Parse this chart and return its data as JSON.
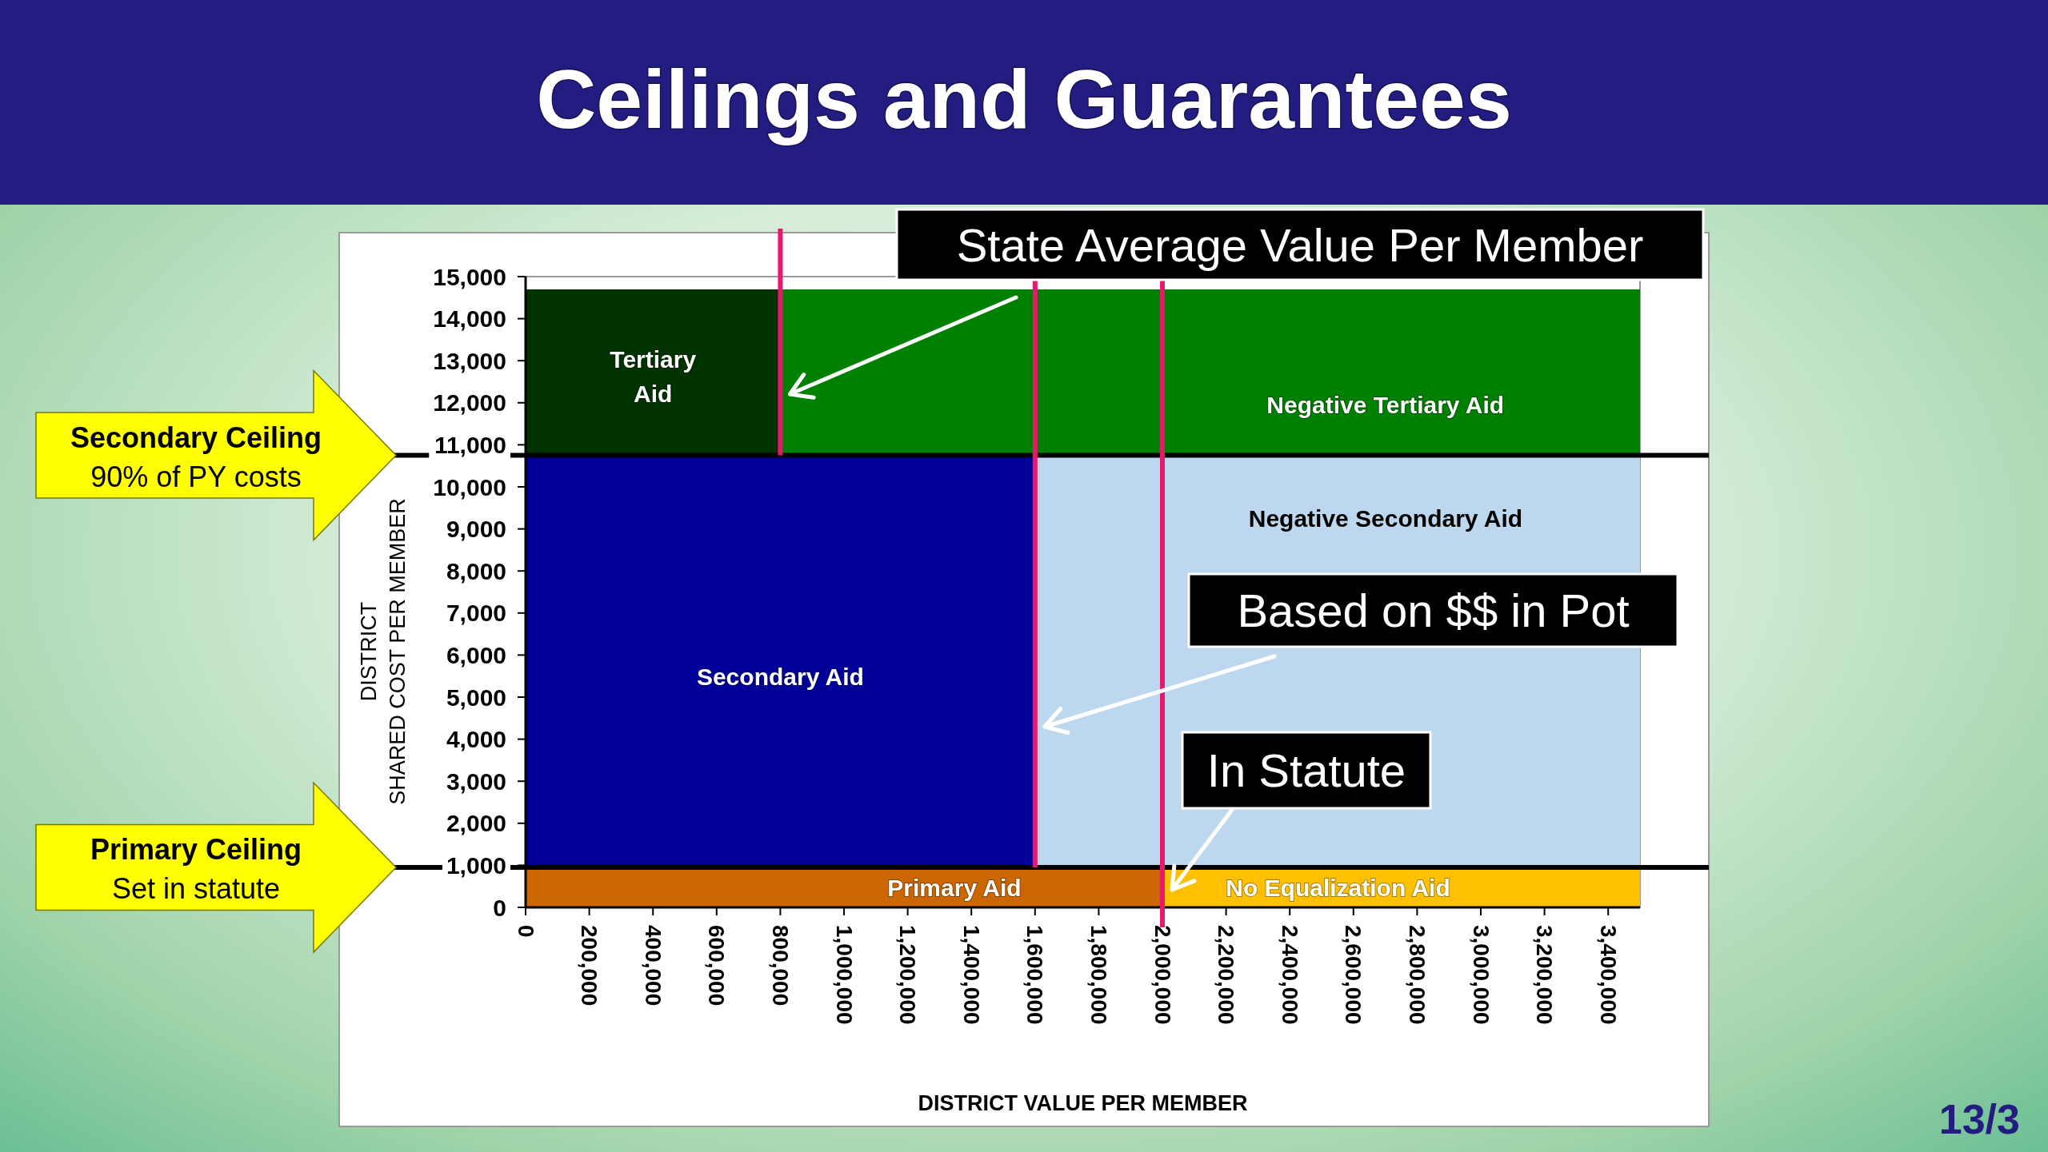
{
  "chart_data": {
    "type": "area",
    "title": "Ceilings and Guarantees",
    "xlabel": "DISTRICT VALUE PER MEMBER",
    "ylabel": "DISTRICT\nSHARED COST PER MEMBER",
    "series": [
      {
        "name": "Tertiary\nAid",
        "color": "#003300",
        "x": [
          0,
          800000
        ],
        "values": [
          14700,
          14700
        ]
      },
      {
        "name": "Negative Tertiary Aid",
        "color": "#008000",
        "x": [
          800000,
          3500000
        ],
        "values": [
          14700,
          14700
        ]
      },
      {
        "name": "Secondary Aid",
        "color": "#000099",
        "x": [
          0,
          1600000
        ],
        "values": [
          10750,
          10750
        ]
      },
      {
        "name": "Negative Secondary Aid",
        "color": "#bdd7ee",
        "x": [
          1600000,
          3500000
        ],
        "values": [
          10750,
          10750
        ]
      },
      {
        "name": "Primary Aid",
        "color": "#cc6600",
        "x": [
          0,
          2000000
        ],
        "values": [
          950,
          950
        ]
      },
      {
        "name": "No Equalization Aid",
        "color": "#ffc000",
        "x": [
          2000000,
          3500000
        ],
        "values": [
          950,
          950
        ]
      }
    ],
    "xlim": [
      0,
      3500000
    ],
    "xticks": [
      0,
      {
        "value": 200000,
        "label": "200,000"
      },
      {
        "value": 400000,
        "label": "400,000"
      },
      {
        "value": 600000,
        "label": "600,000"
      },
      {
        "value": 800000,
        "label": "800,000"
      },
      {
        "value": 1000000,
        "label": "1,000,000"
      },
      {
        "value": 1200000,
        "label": "1,200,000"
      },
      {
        "value": 1400000,
        "label": "1,400,000"
      },
      {
        "value": 1600000,
        "label": "1,600,000"
      },
      {
        "value": 1800000,
        "label": "1,800,000"
      },
      {
        "value": 2000000,
        "label": "2,000,000"
      },
      {
        "value": 2200000,
        "label": "2,200,000"
      },
      {
        "value": 2400000,
        "label": "2,400,000"
      },
      {
        "value": 2600000,
        "label": "2,600,000"
      },
      {
        "value": 2800000,
        "label": "2,800,000"
      },
      {
        "value": 3000000,
        "label": "3,000,000"
      },
      {
        "value": 3200000,
        "label": "3,200,000"
      },
      {
        "value": 3400000,
        "label": "3,400,000"
      }
    ],
    "ylim": [
      0,
      15000
    ],
    "yticks": [
      0,
      {
        "value": 1000,
        "label": "1,000"
      },
      {
        "value": 2000,
        "label": "2,000"
      },
      {
        "value": 3000,
        "label": "3,000"
      },
      {
        "value": 4000,
        "label": "4,000"
      },
      {
        "value": 5000,
        "label": "5,000"
      },
      {
        "value": 6000,
        "label": "6,000"
      },
      {
        "value": 7000,
        "label": "7,000"
      },
      {
        "value": 8000,
        "label": "8,000"
      },
      {
        "value": 9000,
        "label": "9,000"
      },
      {
        "value": 10000,
        "label": "10,000"
      },
      {
        "value": 11000,
        "label": "11,000"
      },
      {
        "value": 12000,
        "label": "12,000"
      },
      {
        "value": 13000,
        "label": "13,000"
      },
      {
        "value": 14000,
        "label": "14,000"
      },
      {
        "value": 15000,
        "label": "15,000"
      }
    ],
    "ref_lines": [
      {
        "axis": "y",
        "value": 10750,
        "label": "Secondary Ceiling\n90% of PY costs",
        "color": "#000000"
      },
      {
        "axis": "y",
        "value": 950,
        "label": "Primary Ceiling\nSet in statute",
        "color": "#000000"
      },
      {
        "axis": "x",
        "value": 800000,
        "label": "State Average Value Per Member",
        "color": "#e8186c"
      },
      {
        "axis": "x",
        "value": 1600000,
        "label": "Based on $$ in Pot",
        "color": "#e8186c"
      },
      {
        "axis": "x",
        "value": 2000000,
        "label": "In Statute",
        "color": "#e8186c"
      }
    ],
    "annotations": [
      "13/3"
    ]
  }
}
